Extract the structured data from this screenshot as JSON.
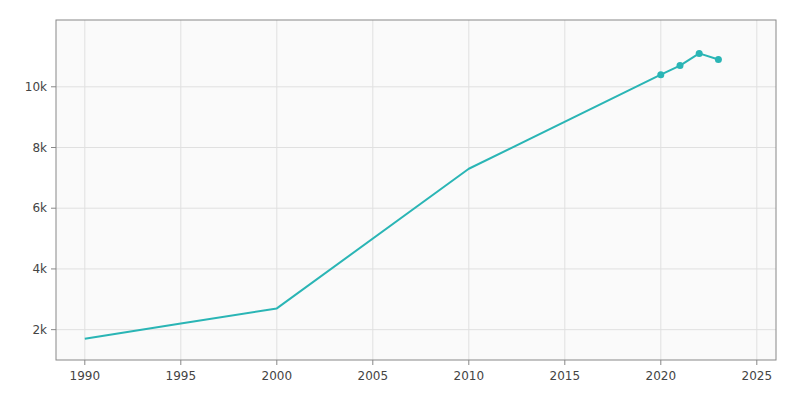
{
  "chart_data": {
    "type": "line",
    "x": [
      1990,
      1995,
      2000,
      2010,
      2020,
      2021,
      2022,
      2023
    ],
    "series": [
      {
        "type": "line",
        "color": "#2ab5b5",
        "values": [
          1700,
          2200,
          2700,
          7300,
          10400,
          10700,
          11100,
          10900
        ]
      },
      {
        "type": "scatter",
        "marker": "circle",
        "color": "#2ab5b5",
        "values": [
          null,
          null,
          null,
          null,
          10400,
          10700,
          11100,
          10900
        ]
      }
    ],
    "xlim": [
      1988.5,
      2026
    ],
    "xticks": [
      1990,
      1995,
      2000,
      2005,
      2010,
      2015,
      2020,
      2025
    ],
    "ylim": [
      1000,
      12200
    ],
    "yticks": [
      {
        "value": 2000,
        "label": "2k"
      },
      {
        "value": 4000,
        "label": "4k"
      },
      {
        "value": 6000,
        "label": "6k"
      },
      {
        "value": 8000,
        "label": "8k"
      },
      {
        "value": 10000,
        "label": "10k"
      }
    ],
    "grid": true
  }
}
